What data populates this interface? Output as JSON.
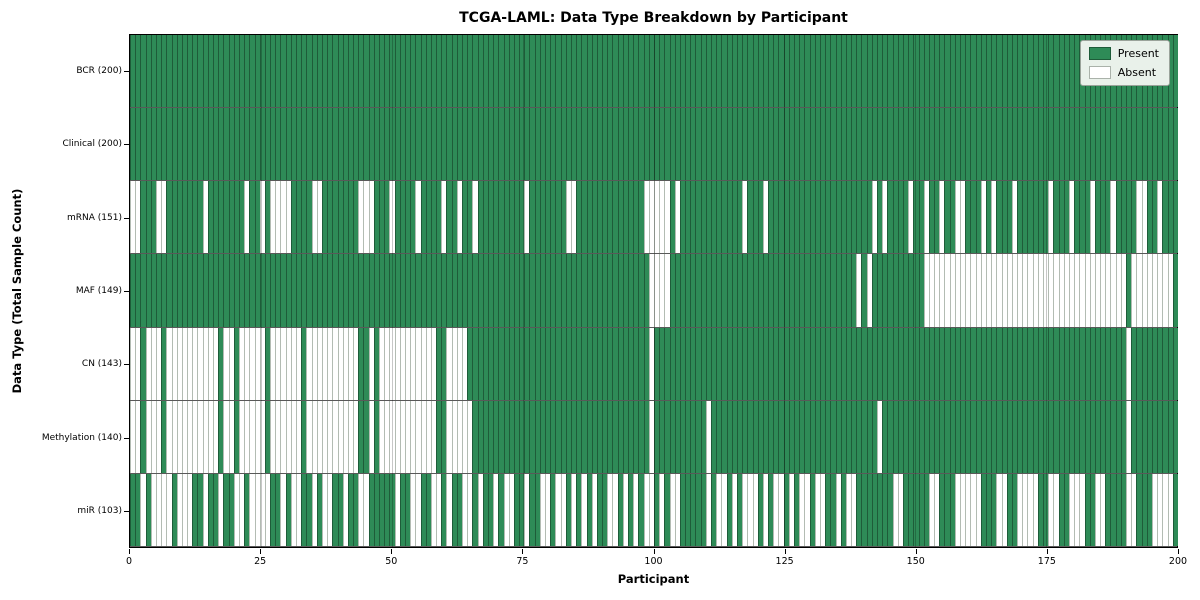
{
  "title": "TCGA-LAML: Data Type Breakdown by Participant",
  "xlabel": "Participant",
  "ylabel": "Data Type (Total Sample Count)",
  "legend": {
    "present_label": "Present",
    "absent_label": "Absent"
  },
  "colors": {
    "present": "#2e8b57",
    "present_edge": "#1e5c39",
    "absent": "#ffffff",
    "absent_edge": "#b3bcb3",
    "legend_bg": "#e9f1ea",
    "axis": "#000000"
  },
  "chart_data": {
    "type": "heatmap",
    "title": "TCGA-LAML: Data Type Breakdown by Participant",
    "xlabel": "Participant",
    "ylabel": "Data Type (Total Sample Count)",
    "x_range": [
      0,
      200
    ],
    "x_ticks": [
      0,
      25,
      50,
      75,
      100,
      125,
      150,
      175,
      200
    ],
    "grid_ticks": [
      25,
      50,
      75,
      100,
      125,
      150,
      175
    ],
    "legend": [
      "Present",
      "Absent"
    ],
    "n_participants": 200,
    "rows": [
      {
        "label": "BCR (200)",
        "name": "BCR",
        "total": 200,
        "presence": "1111111111111111111111111111111111111111111111111111111111111111111111111111111111111111111111111111111111111111111111111111111111111111111111111111111111111111111111111111111111111111111111111111111111"
      },
      {
        "label": "Clinical (200)",
        "name": "Clinical",
        "total": 200,
        "presence": "1111111111111111111111111111111111111111111111111111111111111111111111111111111111111111111111111111111111111111111111111111111111111111111111111111111111111111111111111111111111111111111111111111111111"
      },
      {
        "label": "mRNA (151)",
        "name": "mRNA",
        "total": 151,
        "presence": "0011100111111101111111011010000111100111111100011101111011110110110111111111011111110011111111111110000010111111111111011101111111111111111111101011110110110110011101011101111110111011101110111100110111"
      },
      {
        "label": "MAF (149)",
        "name": "MAF",
        "total": 149,
        "presence": "1111111111111111111111111111111111111111111111111111111111111111111111111111111111111111111111111111000011111111111111111111111111111111111101011111111110000000000000000000000000000000000000001000000001"
      },
      {
        "label": "CN (143)",
        "name": "CN",
        "total": 143,
        "presence": "0010001000000000010010000010000001000000000011010000000000011000011111111111111111111111111111111111011111111111111111111111111111111111111111111111111111111111111111111111111111111111111111110111111111"
      },
      {
        "label": "Methylation (140)",
        "name": "Methylation",
        "total": 140,
        "presence": "0010001000000000010010000010000001000000000011010000000000011000001111111111111111111111111111111111011111111110111111111111111111111111111111110111111111111111111111111111111111111111111111110111111111"
      },
      {
        "label": "miR (103)",
        "name": "miR",
        "total": 103,
        "presence": "1101000010001101101100100001101001101001101100111110110011001011001011010011011001001010101100101010010100111110100101000101001010010011010011111110011111001110000011100110000110011000110011110011100001"
      }
    ]
  }
}
